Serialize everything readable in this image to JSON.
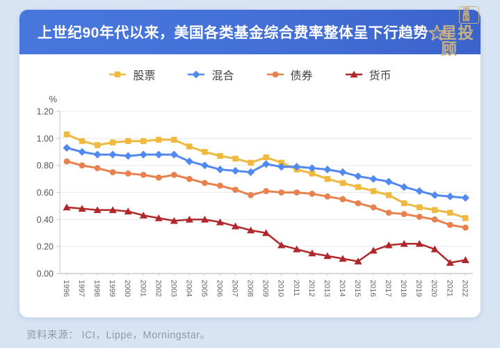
{
  "header": {
    "title": "上世纪90年代以来，美国各类基金综合费率整体呈下行趋势",
    "logo": {
      "badge": "富国",
      "name": "星投顾"
    }
  },
  "footer": {
    "source": "资料来源： ICI，Lippe，Morningstar。"
  },
  "colors": {
    "page_background": "#D7E4F4",
    "header_gradient_start": "#4777DD",
    "header_gradient_end": "#3A63CB",
    "logo_gold": "#C9B183",
    "grid_line": "#E9E9E9",
    "axis_line": "#C4C4C4",
    "x_tick_text": "#666666",
    "y_tick_text": "#555555",
    "legend_text": "#404040",
    "footer_text": "#8C9AAB"
  },
  "chart_data": {
    "type": "line",
    "title": "上世纪90年代以来，美国各类基金综合费率整体呈下行趋势",
    "xlabel": "",
    "ylabel": "%",
    "unit_label": "%",
    "ylim": [
      0,
      1.2
    ],
    "ytick_labels": [
      "0.00",
      "0.20",
      "0.40",
      "0.60",
      "0.80",
      "1.00",
      "1.20"
    ],
    "grid": true,
    "legend_position": "top",
    "x": [
      1996,
      1997,
      1998,
      1999,
      2000,
      2001,
      2002,
      2003,
      2004,
      2005,
      2006,
      2007,
      2008,
      2009,
      2010,
      2011,
      2012,
      2013,
      2014,
      2015,
      2016,
      2017,
      2018,
      2019,
      2020,
      2021,
      2022
    ],
    "series": [
      {
        "id": "equity",
        "name": "股票",
        "color": "#EFB83E",
        "marker": "square",
        "values": [
          1.03,
          0.98,
          0.95,
          0.97,
          0.98,
          0.98,
          0.99,
          0.99,
          0.94,
          0.9,
          0.87,
          0.85,
          0.82,
          0.86,
          0.82,
          0.77,
          0.74,
          0.7,
          0.67,
          0.64,
          0.61,
          0.58,
          0.52,
          0.49,
          0.47,
          0.45,
          0.41
        ]
      },
      {
        "id": "hybrid",
        "name": "混合",
        "color": "#5289F0",
        "marker": "diamond",
        "values": [
          0.93,
          0.9,
          0.88,
          0.88,
          0.87,
          0.88,
          0.88,
          0.88,
          0.83,
          0.8,
          0.77,
          0.76,
          0.75,
          0.81,
          0.79,
          0.79,
          0.78,
          0.77,
          0.75,
          0.72,
          0.7,
          0.68,
          0.64,
          0.61,
          0.58,
          0.57,
          0.56
        ]
      },
      {
        "id": "bond",
        "name": "债券",
        "color": "#E8814D",
        "marker": "circle",
        "values": [
          0.83,
          0.8,
          0.78,
          0.75,
          0.74,
          0.73,
          0.71,
          0.73,
          0.7,
          0.67,
          0.65,
          0.62,
          0.58,
          0.61,
          0.6,
          0.6,
          0.59,
          0.57,
          0.55,
          0.52,
          0.49,
          0.45,
          0.44,
          0.42,
          0.4,
          0.36,
          0.34
        ]
      },
      {
        "id": "money",
        "name": "货币",
        "color": "#B0282B",
        "marker": "triangle",
        "values": [
          0.49,
          0.48,
          0.47,
          0.47,
          0.46,
          0.43,
          0.41,
          0.39,
          0.4,
          0.4,
          0.38,
          0.35,
          0.32,
          0.3,
          0.21,
          0.18,
          0.15,
          0.13,
          0.11,
          0.09,
          0.17,
          0.21,
          0.22,
          0.22,
          0.18,
          0.08,
          0.1
        ]
      }
    ]
  }
}
